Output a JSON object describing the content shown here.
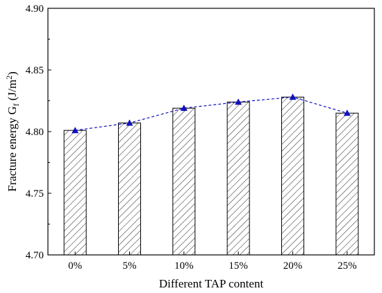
{
  "chart_data": {
    "type": "bar",
    "xlabel": "Different TAP content",
    "ylabel_main": "Fracture energy G",
    "ylabel_sub": "f",
    "ylabel_unit_open": " (J/m",
    "ylabel_unit_sup": "2",
    "ylabel_unit_close": ")",
    "categories": [
      "0%",
      "5%",
      "10%",
      "15%",
      "20%",
      "25%"
    ],
    "values": [
      4.801,
      4.807,
      4.819,
      4.824,
      4.828,
      4.815
    ],
    "ylim": [
      4.7,
      4.9
    ],
    "yticks": [
      4.7,
      4.75,
      4.8,
      4.85,
      4.9
    ],
    "ytick_labels": [
      "4.70",
      "4.75",
      "4.80",
      "4.85",
      "4.90"
    ],
    "bar_fill": "hatched",
    "line_overlay": {
      "style": "dashed",
      "marker": "triangle",
      "color": "#1010c0"
    },
    "grid": false
  }
}
